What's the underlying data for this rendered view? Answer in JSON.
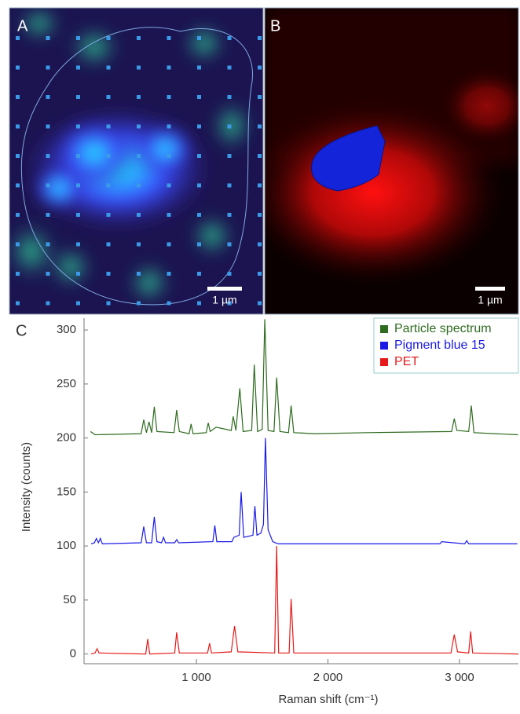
{
  "panels": [
    {
      "label": "A",
      "scale_bar": "1 µm"
    },
    {
      "label": "B",
      "scale_bar": "1 µm"
    }
  ],
  "chart_data": {
    "type": "line",
    "panel_label": "C",
    "x_label": "Raman shift (cm⁻¹)",
    "y_label": "Intensity (counts)",
    "xlim": [
      146,
      3448
    ],
    "ylim": [
      -9,
      311
    ],
    "xticks": [
      {
        "value": 1000,
        "label": "1 000"
      },
      {
        "value": 2000,
        "label": "2 000"
      },
      {
        "value": 3000,
        "label": "3 000"
      }
    ],
    "yticks": [
      0,
      50,
      100,
      150,
      200,
      250,
      300
    ],
    "legend": "top-right",
    "series": [
      {
        "name": "Particle spectrum",
        "color": "#2e6b1f",
        "x": [
          195,
          230,
          580,
          600,
          620,
          640,
          660,
          680,
          700,
          830,
          850,
          870,
          945,
          960,
          975,
          1075,
          1090,
          1105,
          1150,
          1265,
          1280,
          1300,
          1330,
          1355,
          1420,
          1440,
          1465,
          1500,
          1520,
          1545,
          1590,
          1610,
          1635,
          1700,
          1720,
          1740,
          1900,
          2300,
          2940,
          2960,
          2980,
          3070,
          3090,
          3110,
          3445
        ],
        "values": [
          206,
          203,
          204,
          217,
          205,
          215,
          205,
          229,
          206,
          205,
          226,
          206,
          204,
          213,
          204,
          205,
          214,
          206,
          210,
          207,
          220,
          207,
          246,
          206,
          207,
          268,
          206,
          208,
          310,
          207,
          206,
          256,
          206,
          205,
          230,
          205,
          204,
          205,
          206,
          218,
          207,
          206,
          230,
          205,
          203
        ]
      },
      {
        "name": "Pigment blue 15",
        "color": "#1a1ae6",
        "x": [
          200,
          225,
          240,
          255,
          270,
          285,
          580,
          600,
          620,
          660,
          680,
          700,
          735,
          750,
          765,
          835,
          850,
          865,
          1125,
          1140,
          1155,
          1270,
          1285,
          1325,
          1340,
          1360,
          1430,
          1445,
          1460,
          1490,
          1510,
          1525,
          1545,
          1580,
          1620,
          2850,
          2865,
          3040,
          3055,
          3070,
          3440
        ],
        "values": [
          102,
          103,
          107,
          103,
          107,
          102,
          103,
          118,
          103,
          103,
          127,
          104,
          103,
          108,
          103,
          103,
          106,
          103,
          104,
          119,
          104,
          104,
          108,
          110,
          150,
          108,
          110,
          137,
          110,
          112,
          120,
          200,
          115,
          104,
          102,
          102,
          104,
          102,
          105,
          102,
          102
        ]
      },
      {
        "name": "PET",
        "color": "#e61a1a",
        "x": [
          200,
          230,
          245,
          260,
          615,
          630,
          645,
          835,
          850,
          870,
          1085,
          1100,
          1115,
          1265,
          1290,
          1315,
          1595,
          1610,
          1625,
          1705,
          1720,
          1740,
          2935,
          2960,
          2985,
          3070,
          3085,
          3100,
          3448
        ],
        "values": [
          0,
          1,
          5,
          1,
          0,
          14,
          0,
          1,
          20,
          1,
          1,
          10,
          1,
          2,
          26,
          2,
          1,
          100,
          1,
          1,
          51,
          1,
          1,
          18,
          2,
          1,
          21,
          1,
          0
        ]
      }
    ]
  }
}
